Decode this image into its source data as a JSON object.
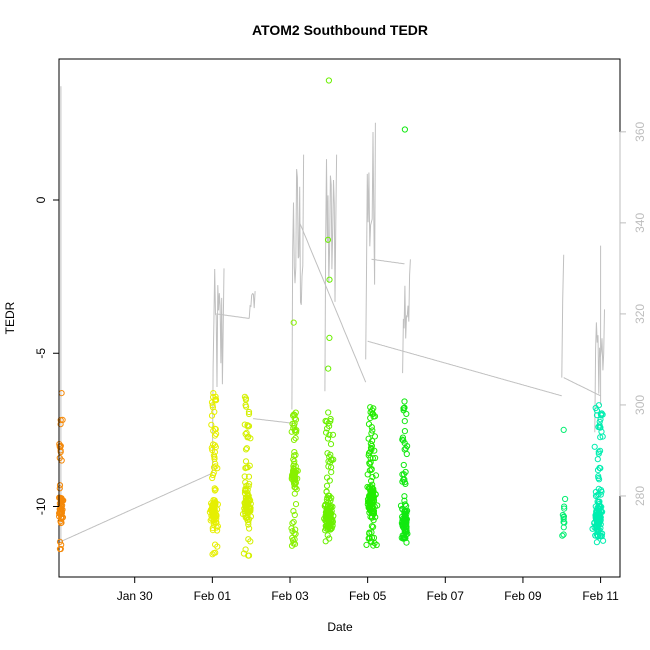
{
  "chart_data": {
    "type": "scatter",
    "title": "ATOM2 Southbound TEDR",
    "xlabel": "Date",
    "ylabel": "TEDR",
    "x_ticks": [
      "Jan 30",
      "Feb 01",
      "Feb 03",
      "Feb 05",
      "Feb 07",
      "Feb 09",
      "Feb 11"
    ],
    "x_tick_values": [
      1,
      3,
      5,
      7,
      9,
      11,
      13
    ],
    "xlim": [
      -0.95,
      13.5
    ],
    "y_ticks": [
      0,
      -5,
      -10
    ],
    "ylim": [
      -12.3,
      4.6
    ],
    "y2_ticks": [
      280,
      300,
      320,
      340,
      360
    ],
    "y2lim": [
      262.2,
      376
    ],
    "grid": false,
    "line_color": "#c0c0c0",
    "point_clusters": [
      {
        "x": -0.9,
        "spread": 0.08,
        "y_min": -11.5,
        "y_max": -7.1,
        "density_center": -10.1,
        "count": 60,
        "color": "#f4890a",
        "outliers": [
          -6.3
        ]
      },
      {
        "x": 3.05,
        "spread": 0.15,
        "y_min": -11.6,
        "y_max": -6.2,
        "density_center": -10.2,
        "count": 110,
        "color": "#e6ef00",
        "outliers": []
      },
      {
        "x": 3.9,
        "spread": 0.15,
        "y_min": -11.7,
        "y_max": -6.1,
        "density_center": -10.0,
        "count": 110,
        "color": "#d4f000",
        "outliers": []
      },
      {
        "x": 5.1,
        "spread": 0.12,
        "y_min": -11.3,
        "y_max": -6.9,
        "density_center": -9.0,
        "count": 90,
        "color": "#88f000",
        "outliers": [
          -4.0
        ]
      },
      {
        "x": 6.0,
        "spread": 0.18,
        "y_min": -11.3,
        "y_max": -6.8,
        "density_center": -10.3,
        "count": 130,
        "color": "#6af000",
        "outliers": [
          -5.5,
          -4.5,
          -2.6,
          -1.3,
          3.9
        ]
      },
      {
        "x": 7.1,
        "spread": 0.18,
        "y_min": -11.3,
        "y_max": -6.5,
        "density_center": -9.8,
        "count": 140,
        "color": "#22ec00",
        "outliers": []
      },
      {
        "x": 7.95,
        "spread": 0.12,
        "y_min": -11.3,
        "y_max": -6.5,
        "density_center": -10.5,
        "count": 100,
        "color": "#10e810",
        "outliers": [
          2.3
        ]
      },
      {
        "x": 12.05,
        "spread": 0.06,
        "y_min": -11.3,
        "y_max": -9.7,
        "density_center": -10.5,
        "count": 12,
        "color": "#00ee70",
        "outliers": [
          -7.5
        ]
      },
      {
        "x": 12.95,
        "spread": 0.18,
        "y_min": -11.3,
        "y_max": -6.6,
        "density_center": -10.4,
        "count": 130,
        "color": "#00eeb0",
        "outliers": []
      }
    ],
    "line_segments": [
      {
        "x": [
          -0.9,
          -0.9
        ],
        "y2": [
          270,
          370
        ],
        "note": ""
      },
      {
        "x": [
          -0.9,
          3.0
        ],
        "y2": [
          270,
          285
        ],
        "note": ""
      },
      {
        "x": [
          3.0,
          3.3
        ],
        "y2": [
          285,
          330
        ],
        "note": ""
      },
      {
        "x": [
          3.1,
          3.95
        ],
        "y2": [
          320,
          319
        ],
        "note": ""
      },
      {
        "x": [
          3.95,
          4.1
        ],
        "y2": [
          319,
          325
        ],
        "note": ""
      },
      {
        "x": [
          4.05,
          5.05
        ],
        "y2": [
          297,
          296
        ],
        "note": ""
      },
      {
        "x": [
          5.05,
          5.35
        ],
        "y2": [
          299,
          355
        ],
        "note": ""
      },
      {
        "x": [
          5.25,
          6.95
        ],
        "y2": [
          340,
          305
        ],
        "note": ""
      },
      {
        "x": [
          5.9,
          6.2
        ],
        "y2": [
          303,
          355
        ],
        "note": ""
      },
      {
        "x": [
          6.95,
          7.2
        ],
        "y2": [
          310,
          362
        ],
        "note": ""
      },
      {
        "x": [
          7.1,
          7.95
        ],
        "y2": [
          332,
          331
        ],
        "note": ""
      },
      {
        "x": [
          7.9,
          8.1
        ],
        "y2": [
          307,
          332
        ],
        "note": ""
      },
      {
        "x": [
          7.0,
          12.0
        ],
        "y2": [
          314,
          302
        ],
        "note": ""
      },
      {
        "x": [
          12.0,
          12.05
        ],
        "y2": [
          306,
          333
        ],
        "note": ""
      },
      {
        "x": [
          12.05,
          13.0
        ],
        "y2": [
          306,
          302
        ],
        "note": ""
      },
      {
        "x": [
          12.85,
          13.1
        ],
        "y2": [
          294,
          321
        ],
        "note": ""
      },
      {
        "x": [
          13.0,
          13.0
        ],
        "y2": [
          300,
          335
        ],
        "note": ""
      }
    ]
  }
}
